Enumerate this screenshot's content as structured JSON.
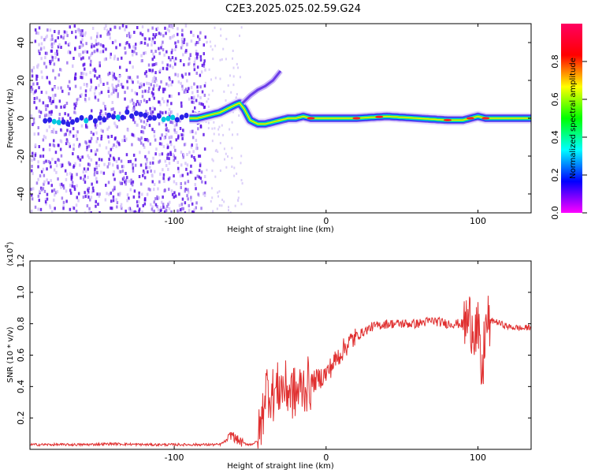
{
  "title": "C2E3.2025.025.02.59.G24",
  "chart_data": [
    {
      "type": "heatmap",
      "xlabel": "Height of straight line (km)",
      "ylabel": "Frequency (Hz)",
      "xlim": [
        -195,
        135
      ],
      "ylim": [
        -50,
        50
      ],
      "xticks": [
        -100,
        0,
        100
      ],
      "yticks": [
        -40,
        -20,
        0,
        20,
        40
      ],
      "colorbar": {
        "label": "Normalized spectral amplitude",
        "range": [
          0,
          1
        ],
        "ticks": [
          "0.0",
          "0.2",
          "0.4",
          "0.6",
          "0.8"
        ],
        "colorscale": [
          "#ff00ff",
          "#0000ff",
          "#00ffff",
          "#00ff00",
          "#ffff00",
          "#ff0000",
          "#ff0060"
        ]
      },
      "ridge": {
        "x": [
          -195,
          -170,
          -150,
          -130,
          -110,
          -95,
          -85,
          -80,
          -75,
          -70,
          -65,
          -60,
          -57,
          -54,
          -50,
          -45,
          -40,
          -35,
          -30,
          -25,
          -20,
          -15,
          -10,
          -5,
          0,
          10,
          20,
          40,
          60,
          80,
          90,
          95,
          100,
          105,
          110,
          120,
          135
        ],
        "y": [
          0,
          -2,
          0,
          2,
          0,
          0,
          0,
          1,
          2,
          3,
          5,
          7,
          8,
          5,
          -1,
          -3,
          -3,
          -2,
          -1,
          0,
          0,
          1,
          0,
          0,
          0,
          0,
          0,
          1,
          0,
          -1,
          -1,
          0,
          1,
          0,
          0,
          0,
          0
        ]
      },
      "branch": {
        "x": [
          -55,
          -50,
          -45,
          -40,
          -35,
          -30
        ],
        "y": [
          8,
          12,
          15,
          17,
          20,
          25
        ]
      }
    },
    {
      "type": "line",
      "xlabel": "Height of straight line (km)",
      "ylabel": "SNR (10 * v/v)",
      "multiplier": "(x10",
      "multiplier_exp": "4",
      "xlim": [
        -195,
        135
      ],
      "ylim": [
        0,
        1.2
      ],
      "xticks": [
        -100,
        0,
        100
      ],
      "yticks": [
        0.2,
        0.4,
        0.6,
        0.8,
        1.0,
        1.2
      ],
      "ytick_labels": [
        "0.2",
        "0.4",
        "0.6",
        "0.8",
        "1.0",
        "1.2"
      ],
      "color": "#e03030",
      "series": [
        {
          "x": [
            -195,
            -180,
            -160,
            -140,
            -120,
            -100,
            -80,
            -70,
            -65,
            -62,
            -60,
            -55,
            -50,
            -45,
            -42,
            -40,
            -35,
            -30,
            -25,
            -20,
            -15,
            -10,
            -5,
            0,
            5,
            10,
            15,
            20,
            30,
            40,
            50,
            60,
            70,
            80,
            90,
            95,
            100,
            103,
            104,
            106,
            110,
            120,
            130,
            135
          ],
          "y": [
            0.03,
            0.03,
            0.03,
            0.035,
            0.03,
            0.03,
            0.03,
            0.03,
            0.06,
            0.1,
            0.07,
            0.04,
            0.03,
            0.05,
            0.2,
            0.4,
            0.35,
            0.4,
            0.38,
            0.35,
            0.4,
            0.42,
            0.45,
            0.48,
            0.55,
            0.62,
            0.68,
            0.72,
            0.78,
            0.8,
            0.8,
            0.8,
            0.82,
            0.8,
            0.8,
            0.82,
            0.75,
            0.4,
            0.7,
            0.8,
            0.82,
            0.78,
            0.77,
            0.78
          ]
        }
      ]
    }
  ]
}
